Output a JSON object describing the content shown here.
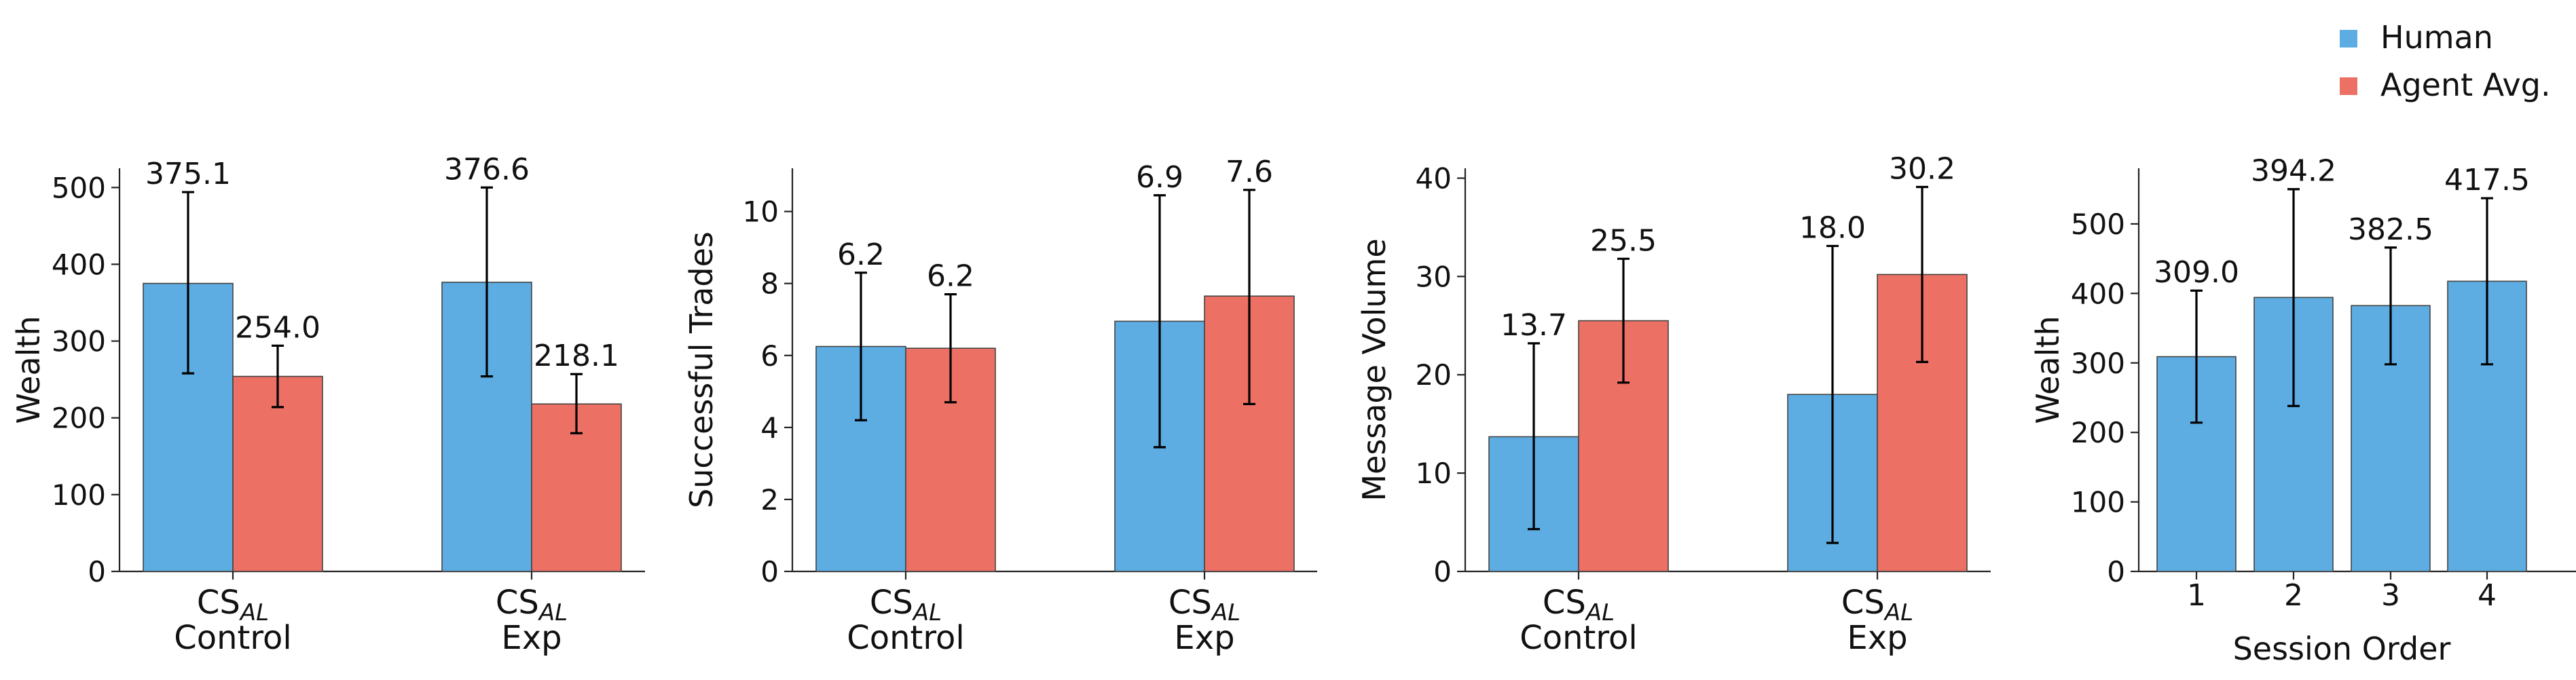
{
  "legend": {
    "placement": "top-right",
    "items": [
      {
        "label": "Human",
        "color": "#5dade2"
      },
      {
        "label": "Agent Avg.",
        "color": "#ec7063"
      }
    ]
  },
  "chart_data": [
    {
      "type": "bar",
      "ylabel": "Wealth",
      "ylim": [
        0,
        525
      ],
      "yticks": [
        0,
        100,
        200,
        300,
        400,
        500
      ],
      "categories": [
        {
          "main": "CS",
          "sub": "AL",
          "line2": "Control"
        },
        {
          "main": "CS",
          "sub": "AL",
          "line2": "Exp"
        }
      ],
      "series": [
        {
          "name": "Human",
          "values": [
            375.1,
            376.6
          ],
          "err_low": [
            258,
            254
          ],
          "err_high": [
            494,
            500
          ],
          "labels": [
            "375.1",
            "376.6"
          ]
        },
        {
          "name": "Agent Avg.",
          "values": [
            254.0,
            218.1
          ],
          "err_low": [
            214,
            180
          ],
          "err_high": [
            294,
            257
          ],
          "labels": [
            "254.0",
            "218.1"
          ]
        }
      ]
    },
    {
      "type": "bar",
      "ylabel": "Successful Trades",
      "ylim": [
        0,
        11.2
      ],
      "yticks": [
        0,
        2,
        4,
        6,
        8,
        10
      ],
      "categories": [
        {
          "main": "CS",
          "sub": "AL",
          "line2": "Control"
        },
        {
          "main": "CS",
          "sub": "AL",
          "line2": "Exp"
        }
      ],
      "series": [
        {
          "name": "Human",
          "values": [
            6.25,
            6.95
          ],
          "err_low": [
            4.2,
            3.45
          ],
          "err_high": [
            8.3,
            10.45
          ],
          "labels": [
            "6.2",
            "6.9"
          ]
        },
        {
          "name": "Agent Avg.",
          "values": [
            6.2,
            7.65
          ],
          "err_low": [
            4.7,
            4.65
          ],
          "err_high": [
            7.7,
            10.6
          ],
          "labels": [
            "6.2",
            "7.6"
          ]
        }
      ]
    },
    {
      "type": "bar",
      "ylabel": "Message Volume",
      "ylim": [
        0,
        41
      ],
      "yticks": [
        0,
        10,
        20,
        30,
        40
      ],
      "categories": [
        {
          "main": "CS",
          "sub": "AL",
          "line2": "Control"
        },
        {
          "main": "CS",
          "sub": "AL",
          "line2": "Exp"
        }
      ],
      "series": [
        {
          "name": "Human",
          "values": [
            13.7,
            18.0
          ],
          "err_low": [
            4.3,
            2.9
          ],
          "err_high": [
            23.2,
            33.1
          ],
          "labels": [
            "13.7",
            "18.0"
          ]
        },
        {
          "name": "Agent Avg.",
          "values": [
            25.5,
            30.2
          ],
          "err_low": [
            19.2,
            21.3
          ],
          "err_high": [
            31.8,
            39.1
          ],
          "labels": [
            "25.5",
            "30.2"
          ]
        }
      ]
    },
    {
      "type": "bar",
      "ylabel": "Wealth",
      "xlabel": "Session Order",
      "ylim": [
        0,
        580
      ],
      "yticks": [
        0,
        100,
        200,
        300,
        400,
        500
      ],
      "categories": [
        {
          "main": "1"
        },
        {
          "main": "2"
        },
        {
          "main": "3"
        },
        {
          "main": "4"
        }
      ],
      "series": [
        {
          "name": "Human",
          "values": [
            309.0,
            394.2,
            382.5,
            417.5
          ],
          "err_low": [
            214,
            238,
            298,
            298
          ],
          "err_high": [
            404,
            550,
            466,
            537
          ],
          "labels": [
            "309.0",
            "394.2",
            "382.5",
            "417.5"
          ]
        }
      ]
    }
  ]
}
